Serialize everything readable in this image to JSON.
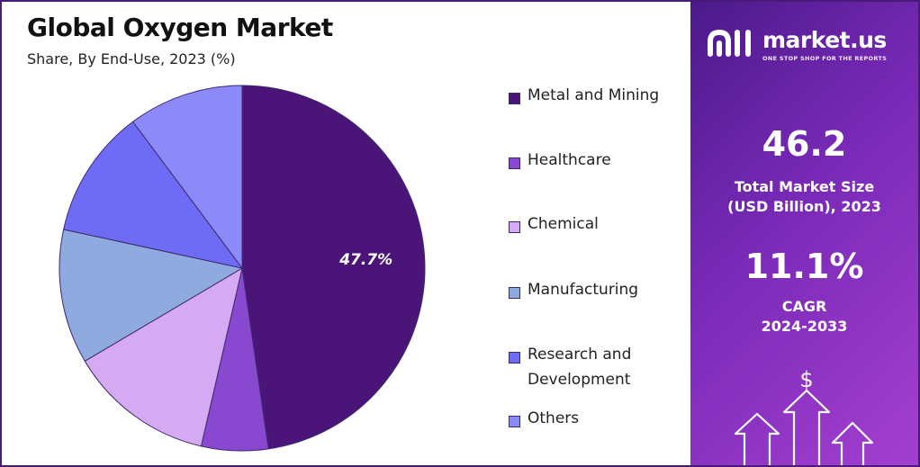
{
  "title": "Global Oxygen Market",
  "subtitle": "Share, By End-Use, 2023 (%)",
  "chart_data": {
    "type": "pie",
    "title": "Global Oxygen Market",
    "subtitle": "Share, By End-Use, 2023 (%)",
    "legend_position": "right",
    "slices": [
      {
        "name": "Metal and Mining",
        "value": 47.7,
        "color": "#4a1478",
        "label": "47.7%"
      },
      {
        "name": "Healthcare",
        "value": 5.9,
        "color": "#8848cf",
        "label": ""
      },
      {
        "name": "Chemical",
        "value": 12.9,
        "color": "#d6aaf2",
        "label": ""
      },
      {
        "name": "Manufacturing",
        "value": 11.9,
        "color": "#8eaadf",
        "label": ""
      },
      {
        "name": "Research and Development",
        "value": 11.4,
        "color": "#6e6cf5",
        "label": ""
      },
      {
        "name": "Others",
        "value": 10.2,
        "color": "#8c8af9",
        "label": ""
      }
    ]
  },
  "legend": [
    {
      "line1": "Metal and Mining",
      "line2": ""
    },
    {
      "line1": "Healthcare",
      "line2": ""
    },
    {
      "line1": "Chemical",
      "line2": ""
    },
    {
      "line1": "Manufacturing",
      "line2": ""
    },
    {
      "line1": "Research and",
      "line2": "Development"
    },
    {
      "line1": "Others",
      "line2": ""
    }
  ],
  "sidebar": {
    "brand_name": "market.us",
    "brand_tagline": "ONE STOP SHOP FOR THE REPORTS",
    "market_size_value": "46.2",
    "market_size_label_1": "Total Market Size",
    "market_size_label_2": "(USD Billion), 2023",
    "cagr_value": "11.1%",
    "cagr_label_1": "CAGR",
    "cagr_label_2": "2024-2033",
    "dollar_symbol": "$",
    "colors": {
      "gradient_start": "#4b1a8a",
      "gradient_end": "#a43fd0"
    }
  }
}
